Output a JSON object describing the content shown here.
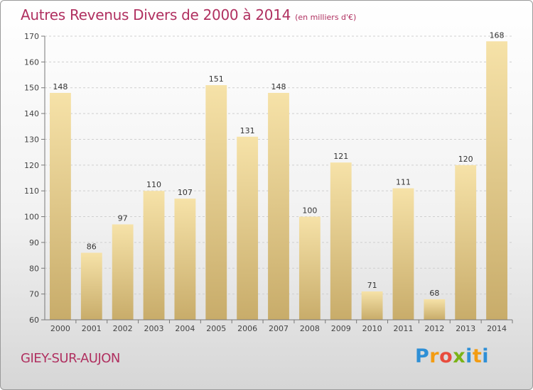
{
  "header": {
    "title": "Autres Revenus Divers de 2000 à 2014",
    "subtitle": "(en milliers d'€)"
  },
  "footer": {
    "commune": "GIEY-SUR-AUJON",
    "logo_letters": [
      "P",
      "r",
      "o",
      "x",
      "i",
      "t",
      "i"
    ],
    "logo_colors": [
      "#2e8fd6",
      "#f39c12",
      "#e84c3d",
      "#7ab317",
      "#2e8fd6",
      "#f39c12",
      "#2e8fd6"
    ]
  },
  "chart_data": {
    "type": "bar",
    "categories": [
      "2000",
      "2001",
      "2002",
      "2003",
      "2004",
      "2005",
      "2006",
      "2007",
      "2008",
      "2009",
      "2010",
      "2011",
      "2012",
      "2013",
      "2014"
    ],
    "values": [
      148,
      86,
      97,
      110,
      107,
      151,
      131,
      148,
      100,
      121,
      71,
      111,
      68,
      120,
      168
    ],
    "ylim": [
      60,
      170
    ],
    "yticks": [
      60,
      70,
      80,
      90,
      100,
      110,
      120,
      130,
      140,
      150,
      160,
      170
    ],
    "grid": true,
    "bar_color_light": "#f6e2a8",
    "bar_color_dark": "#c8ac6a"
  }
}
